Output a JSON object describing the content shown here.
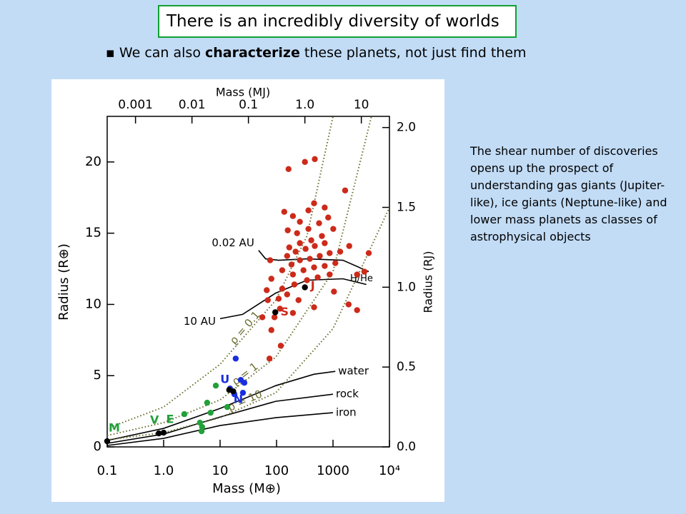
{
  "title": "There is an incredibly diversity of worlds",
  "bullet": {
    "before": "We can also ",
    "bold": "characterize",
    "after": " these planets, not just find them"
  },
  "body": "The shear number of discoveries opens up the prospect of understanding gas giants (Jupiter-like), ice giants (Neptune-like) and lower mass planets as classes of astrophysical objects",
  "chart_data": {
    "type": "scatter",
    "x_scale": "log",
    "xlabel": "Mass (M⊕)",
    "ylabel": "Radius (R⊕)",
    "x2label": "Mass (MJ)",
    "y2label": "Radius (RJ)",
    "xlim": [
      0.1,
      10000
    ],
    "xticks": [
      0.1,
      {
        "value": 1,
        "label": "1.0"
      },
      10,
      100,
      1000,
      {
        "value": 10000,
        "label": "10⁴"
      }
    ],
    "x2lim": [
      0.000315,
      31.47
    ],
    "x2ticks": [
      0.001,
      0.01,
      0.1,
      {
        "value": 1,
        "label": "1.0"
      },
      10
    ],
    "ylim": [
      0,
      23.2
    ],
    "yticks": [
      0,
      5,
      10,
      15,
      20
    ],
    "y2lim": [
      0,
      2.07
    ],
    "y2ticks": [
      {
        "value": 0,
        "label": "0.0"
      },
      0.5,
      {
        "value": 1,
        "label": "1.0"
      },
      1.5,
      {
        "value": 2,
        "label": "2.0"
      }
    ],
    "series": [
      {
        "color": "#cc2a1a",
        "x": [
          163,
          318,
          476,
          1640,
          137,
          195,
          259,
          367,
          462,
          713,
          158,
          231,
          367,
          567,
          822,
          168,
          259,
          412,
          636,
          1010,
          154,
          218,
          327,
          476,
          713,
          1940,
          184,
          259,
          389,
          583,
          872,
          1340,
          4300,
          77,
          126,
          195,
          300,
          462,
          713,
          1100,
          2670,
          3600,
          81,
          126,
          207,
          346,
          536,
          872,
          67,
          109,
          154,
          245,
          462,
          1040,
          70,
          115,
          195,
          92,
          56,
          81,
          119,
          75,
          2670,
          1890
        ],
        "y": [
          19.5,
          20.0,
          20.2,
          18.0,
          16.5,
          16.2,
          15.8,
          16.6,
          17.1,
          16.8,
          15.2,
          15.0,
          15.3,
          15.7,
          16.1,
          14.0,
          14.3,
          14.5,
          14.8,
          15.3,
          13.4,
          13.7,
          13.9,
          14.1,
          14.3,
          14.1,
          12.8,
          13.1,
          13.2,
          13.4,
          13.6,
          13.7,
          13.6,
          13.1,
          12.4,
          12.1,
          12.4,
          12.6,
          12.7,
          12.9,
          12.1,
          12.3,
          11.8,
          11.1,
          11.4,
          11.7,
          11.9,
          12.1,
          11.0,
          10.4,
          10.7,
          10.3,
          9.8,
          10.9,
          10.3,
          9.7,
          9.4,
          9.1,
          9.1,
          8.2,
          7.1,
          6.2,
          9.6,
          10.0
        ]
      },
      {
        "color": "#1a2ee0",
        "x": [
          18.9,
          23.3,
          26.9,
          25.4,
          15.0,
          17.9
        ],
        "y": [
          6.2,
          4.7,
          4.5,
          3.8,
          4.1,
          3.7
        ]
      },
      {
        "color": "#22a03a",
        "x": [
          8.4,
          5.9,
          2.33,
          6.8,
          13.4,
          4.4,
          4.8,
          4.7
        ],
        "y": [
          4.3,
          3.1,
          2.3,
          2.4,
          2.8,
          1.7,
          1.4,
          1.1
        ]
      },
      {
        "color": "#000000",
        "x": [
          0.1,
          0.82,
          1.0,
          14.5,
          17.1,
          95,
          318
        ],
        "y": [
          0.4,
          0.95,
          1.0,
          4.0,
          3.9,
          9.45,
          11.2
        ],
        "labels": [
          "M",
          "V",
          "E",
          "U",
          "N",
          "S",
          "J"
        ],
        "label_colors": [
          "#22a03a",
          "#22a03a",
          "#22a03a",
          "#1a2ee0",
          "#1a2ee0",
          "#cc2a1a",
          "#cc2a1a"
        ]
      }
    ],
    "curves": [
      {
        "name": "water",
        "color": "#000000",
        "style": "solid",
        "x": [
          0.1,
          1,
          10,
          97,
          462,
          1100
        ],
        "y": [
          0.45,
          1.3,
          2.7,
          4.3,
          5.1,
          5.3
        ]
      },
      {
        "name": "rock",
        "color": "#000000",
        "style": "solid",
        "x": [
          0.1,
          1,
          10,
          97,
          1000
        ],
        "y": [
          0.25,
          0.9,
          2.1,
          3.2,
          3.7
        ]
      },
      {
        "name": "iron",
        "color": "#000000",
        "style": "solid",
        "x": [
          0.1,
          1,
          10,
          97,
          1000
        ],
        "y": [
          0.1,
          0.6,
          1.5,
          2.05,
          2.4
        ]
      },
      {
        "name": "0.02 AU",
        "color": "#000000",
        "style": "solid",
        "x": [
          48,
          64,
          109,
          346,
          1500,
          4300
        ],
        "y": [
          13.8,
          13.2,
          13.1,
          13.2,
          13.1,
          12.3
        ]
      },
      {
        "name": "10 AU",
        "color": "#000000",
        "style": "solid",
        "x": [
          10,
          25,
          97,
          346,
          1500,
          3900
        ],
        "y": [
          9.0,
          9.3,
          10.8,
          11.7,
          11.8,
          11.4
        ]
      },
      {
        "name": "ρ = 0.1",
        "color": "#6b6b2e",
        "style": "dotted",
        "x": [
          0.1,
          1,
          10,
          97,
          346,
          1000
        ],
        "y": [
          1.3,
          2.8,
          5.8,
          10.3,
          14.8,
          23.2
        ]
      },
      {
        "name": "ρ = 1",
        "color": "#6b6b2e",
        "style": "dotted",
        "x": [
          0.1,
          1,
          10,
          97,
          1000,
          4800
        ],
        "y": [
          0.8,
          1.7,
          3.3,
          6.3,
          12.3,
          23.2
        ]
      },
      {
        "name": "ρ = 10",
        "color": "#6b6b2e",
        "style": "dotted",
        "x": [
          0.1,
          1,
          10,
          97,
          1000,
          10000
        ],
        "y": [
          0.5,
          1.0,
          2.05,
          3.8,
          8.3,
          16.8
        ]
      }
    ],
    "annotations": [
      {
        "text": "H/He",
        "x": 3200,
        "y": 11.8
      }
    ]
  }
}
